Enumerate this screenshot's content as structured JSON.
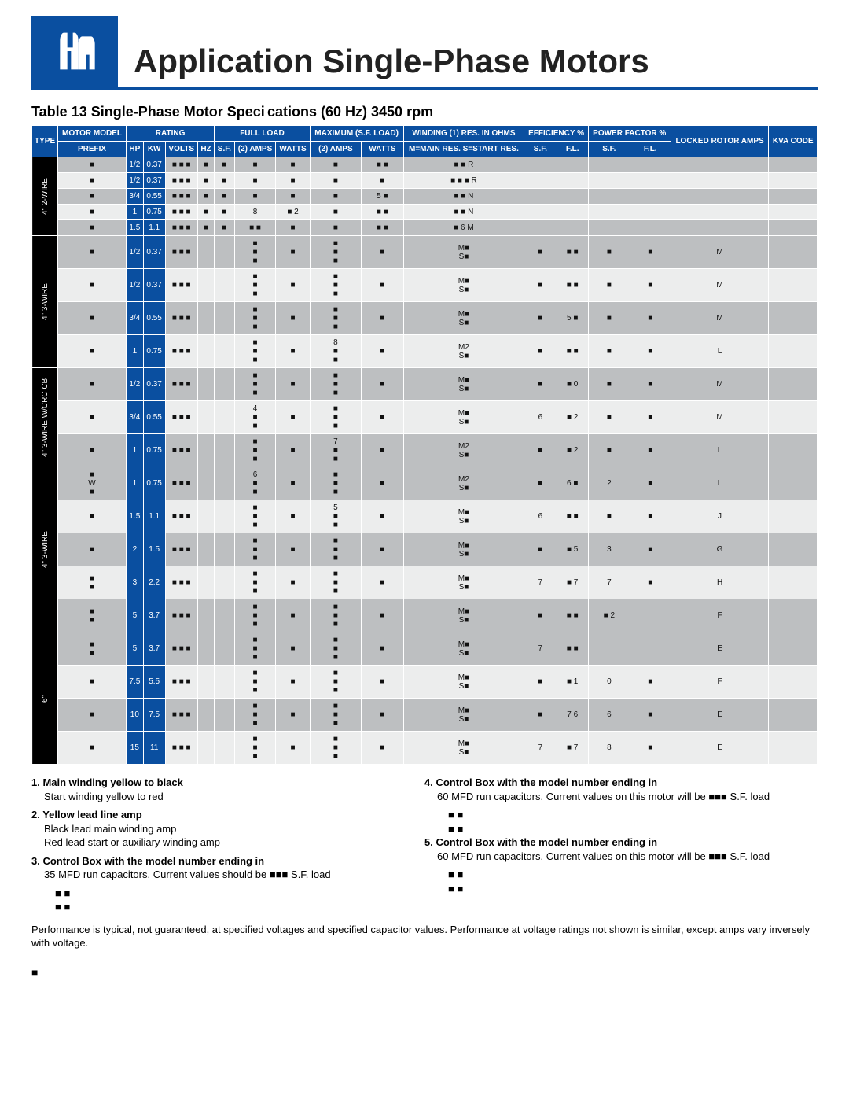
{
  "page_title": "Application  Single-Phase Motors",
  "table_caption_left": "Table 13 Single-Phase Motor Speci",
  "table_caption_right": "cations (60 Hz) 3450 rpm",
  "headers": {
    "type": "TYPE",
    "motor_model": "MOTOR MODEL",
    "prefix": "PREFIX",
    "rating": "RATING",
    "hp": "HP",
    "kw": "KW",
    "volts": "VOLTS",
    "hz": "HZ",
    "full_load": "FULL LOAD",
    "sf": "S.F.",
    "amps2": "(2) AMPS",
    "watts": "WATTS",
    "max_sf": "MAXIMUM (S.F. LOAD)",
    "winding": "WINDING (1) RES. IN OHMS",
    "mmain": "M=MAIN RES. S=START RES.",
    "eff": "EFFICIENCY %",
    "pf": "POWER FACTOR %",
    "fl": "F.L.",
    "locked_rotor": "LOCKED ROTOR AMPS",
    "kva_code": "KVA CODE"
  },
  "types": [
    "4\" 2-WIRE",
    "4\" 3-WIRE",
    "4\" 3-WIRE W/CRC CB",
    "4\" 3-WIRE",
    "6\""
  ],
  "group1": [
    {
      "prefix": "■",
      "hp": "1/2",
      "kw": "0.37",
      "volts": "■ ■ ■",
      "hz": "■",
      "sf": "■",
      "amps": "■",
      "watts": "■",
      "mamps": "■",
      "mwatts": "■ ■",
      "wind": "■ ■ R",
      "effs": "",
      "pf": "",
      "lr": "",
      "kva": ""
    },
    {
      "prefix": "■",
      "hp": "1/2",
      "kw": "0.37",
      "volts": "■ ■ ■",
      "hz": "■",
      "sf": "■",
      "amps": "■",
      "watts": "■",
      "mamps": "■",
      "mwatts": "■",
      "wind": "■ ■ ■ R",
      "effs": "",
      "pf": "",
      "lr": "",
      "kva": ""
    },
    {
      "prefix": "■",
      "hp": "3/4",
      "kw": "0.55",
      "volts": "■ ■ ■",
      "hz": "■",
      "sf": "■",
      "amps": "■",
      "watts": "■",
      "mamps": "■",
      "mwatts": "5 ■",
      "wind": "■ ■ N",
      "effs": "",
      "pf": "",
      "lr": "",
      "kva": ""
    },
    {
      "prefix": "■",
      "hp": "1",
      "kw": "0.75",
      "volts": "■ ■ ■",
      "hz": "■",
      "sf": "■",
      "amps": "8",
      "watts": "■ 2",
      "mamps": "■",
      "mwatts": "■ ■",
      "wind": "■ ■ N",
      "effs": "",
      "pf": "",
      "lr": "",
      "kva": ""
    },
    {
      "prefix": "■",
      "hp": "1.5",
      "kw": "1.1",
      "volts": "■ ■ ■",
      "hz": "■",
      "sf": "■",
      "amps": "■ ■",
      "watts": "■",
      "mamps": "■",
      "mwatts": "■ ■",
      "wind": "■ 6 M",
      "effs": "",
      "pf": "",
      "lr": "",
      "kva": ""
    }
  ],
  "group2": [
    {
      "prefix": "■",
      "hp": "1/2",
      "kw": "0.37",
      "volts": "■ ■ ■",
      "hz": "",
      "sf": "",
      "amps": "■\n■\n■",
      "watts": "■",
      "mamps": "■\n■\n■",
      "mwatts": "■",
      "wind": "M■\nS■",
      "eff_sf": "■",
      "eff_fl": "■ ■",
      "pf_sf": "■",
      "pf_fl": "■",
      "lr": "M",
      "kva": ""
    },
    {
      "prefix": "■",
      "hp": "1/2",
      "kw": "0.37",
      "volts": "■ ■ ■",
      "hz": "",
      "sf": "",
      "amps": "■\n■\n■",
      "watts": "■",
      "mamps": "■\n■\n■",
      "mwatts": "■",
      "wind": "M■\nS■",
      "eff_sf": "■",
      "eff_fl": "■ ■",
      "pf_sf": "■",
      "pf_fl": "■",
      "lr": "M",
      "kva": ""
    },
    {
      "prefix": "■",
      "hp": "3/4",
      "kw": "0.55",
      "volts": "■ ■ ■",
      "hz": "",
      "sf": "",
      "amps": "■\n■\n■",
      "watts": "■",
      "mamps": "■\n■\n■",
      "mwatts": "■",
      "wind": "M■\nS■",
      "eff_sf": "■",
      "eff_fl": "5 ■",
      "pf_sf": "■",
      "pf_fl": "■",
      "lr": "M",
      "kva": ""
    },
    {
      "prefix": "■",
      "hp": "1",
      "kw": "0.75",
      "volts": "■ ■ ■",
      "hz": "",
      "sf": "",
      "amps": "■\n■\n■",
      "watts": "■",
      "mamps": "8\n■\n■",
      "mwatts": "■",
      "wind": "M2\nS■",
      "eff_sf": "■",
      "eff_fl": "■ ■",
      "pf_sf": "■",
      "pf_fl": "■",
      "lr": "L",
      "kva": ""
    }
  ],
  "group3": [
    {
      "prefix": "■",
      "hp": "1/2",
      "kw": "0.37",
      "volts": "■ ■ ■",
      "hz": "",
      "sf": "",
      "amps": "■\n■\n■",
      "watts": "■",
      "mamps": "■\n■\n■",
      "mwatts": "■",
      "wind": "M■\nS■",
      "eff_sf": "■",
      "eff_fl": "■ 0",
      "pf_sf": "■",
      "pf_fl": "■",
      "lr": "M",
      "kva": ""
    },
    {
      "prefix": "■",
      "hp": "3/4",
      "kw": "0.55",
      "volts": "■ ■ ■",
      "hz": "",
      "sf": "",
      "amps": "4\n■\n■",
      "watts": "■",
      "mamps": "■\n■\n■",
      "mwatts": "■",
      "wind": "M■\nS■",
      "eff_sf": "6",
      "eff_fl": "■ 2",
      "pf_sf": "■",
      "pf_fl": "■",
      "lr": "M",
      "kva": ""
    },
    {
      "prefix": "■",
      "hp": "1",
      "kw": "0.75",
      "volts": "■ ■ ■",
      "hz": "",
      "sf": "",
      "amps": "■\n■\n■",
      "watts": "■",
      "mamps": "7\n■\n■",
      "mwatts": "■",
      "wind": "M2\nS■",
      "eff_sf": "■",
      "eff_fl": "■ 2",
      "pf_sf": "■",
      "pf_fl": "■",
      "lr": "L",
      "kva": ""
    }
  ],
  "group4": [
    {
      "prefix": "■\nW\n■",
      "hp": "1",
      "kw": "0.75",
      "volts": "■ ■ ■",
      "hz": "",
      "sf": "",
      "amps": "6\n■\n■",
      "watts": "■",
      "mamps": "■\n■\n■",
      "mwatts": "■",
      "wind": "M2\nS■",
      "eff_sf": "■",
      "eff_fl": "6 ■",
      "pf_sf": "2",
      "pf_fl": "■",
      "lr": "L",
      "kva": ""
    },
    {
      "prefix": "■",
      "hp": "1.5",
      "kw": "1.1",
      "volts": "■ ■ ■",
      "hz": "",
      "sf": "",
      "amps": "■\n■\n■",
      "watts": "■",
      "mamps": "5\n■\n■",
      "mwatts": "■",
      "wind": "M■\nS■",
      "eff_sf": "6",
      "eff_fl": "■ ■",
      "pf_sf": "■",
      "pf_fl": "■",
      "lr": "J",
      "kva": ""
    },
    {
      "prefix": "■",
      "hp": "2",
      "kw": "1.5",
      "volts": "■ ■ ■",
      "hz": "",
      "sf": "",
      "amps": "■\n■\n■",
      "watts": "■",
      "mamps": "■\n■\n■",
      "mwatts": "■",
      "wind": "M■\nS■",
      "eff_sf": "■",
      "eff_fl": "■ 5",
      "pf_sf": "3",
      "pf_fl": "■",
      "lr": "G",
      "kva": ""
    },
    {
      "prefix": "■\n■",
      "hp": "3",
      "kw": "2.2",
      "volts": "■ ■ ■",
      "hz": "",
      "sf": "",
      "amps": "■\n■\n■",
      "watts": "■",
      "mamps": "■\n■\n■",
      "mwatts": "■",
      "wind": "M■\nS■",
      "eff_sf": "7",
      "eff_fl": "■ 7",
      "pf_sf": "7",
      "pf_fl": "■",
      "lr": "H",
      "kva": ""
    },
    {
      "prefix": "■\n■",
      "hp": "5",
      "kw": "3.7",
      "volts": "■ ■ ■",
      "hz": "",
      "sf": "",
      "amps": "■\n■\n■",
      "watts": "■",
      "mamps": "■\n■\n■",
      "mwatts": "■",
      "wind": "M■\nS■",
      "eff_sf": "■",
      "eff_fl": "■ ■",
      "pf_sf": "■ 2",
      "pf_fl": "",
      "lr": "F",
      "kva": ""
    }
  ],
  "group5": [
    {
      "prefix": "■\n■",
      "hp": "5",
      "kw": "3.7",
      "volts": "■ ■ ■",
      "hz": "",
      "sf": "",
      "amps": "■\n■\n■",
      "watts": "■",
      "mamps": "■\n■\n■",
      "mwatts": "■",
      "wind": "M■\nS■",
      "eff_sf": "7",
      "eff_fl": "■ ■",
      "pf_sf": "",
      "pf_fl": "",
      "lr": "E",
      "kva": ""
    },
    {
      "prefix": "■",
      "hp": "7.5",
      "kw": "5.5",
      "volts": "■ ■ ■",
      "hz": "",
      "sf": "",
      "amps": "■\n■\n■",
      "watts": "■",
      "mamps": "■\n■\n■",
      "mwatts": "■",
      "wind": "M■\nS■",
      "eff_sf": "■",
      "eff_fl": "■ 1",
      "pf_sf": "0",
      "pf_fl": "■",
      "lr": "F",
      "kva": ""
    },
    {
      "prefix": "■",
      "hp": "10",
      "kw": "7.5",
      "volts": "■ ■ ■",
      "hz": "",
      "sf": "",
      "amps": "■\n■\n■",
      "watts": "■",
      "mamps": "■\n■\n■",
      "mwatts": "■",
      "wind": "M■\nS■",
      "eff_sf": "■",
      "eff_fl": "7 6",
      "pf_sf": "6",
      "pf_fl": "■",
      "lr": "E",
      "kva": ""
    },
    {
      "prefix": "■",
      "hp": "15",
      "kw": "11",
      "volts": "■ ■ ■",
      "hz": "",
      "sf": "",
      "amps": "■\n■\n■",
      "watts": "■",
      "mamps": "■\n■\n■",
      "mwatts": "■",
      "wind": "M■\nS■",
      "eff_sf": "7",
      "eff_fl": "■ 7",
      "pf_sf": "8",
      "pf_fl": "■",
      "lr": "E",
      "kva": ""
    }
  ],
  "notes_left": [
    {
      "num": "1",
      "text": "Main winding yellow to black",
      "sub": "Start winding yellow to red"
    },
    {
      "num": "2",
      "text": "Yellow lead line amp",
      "sub": "Black lead main winding amp\nRed lead start or auxiliary winding amp"
    },
    {
      "num": "3",
      "text": "Control Box with the model number ending in",
      "sub": "35 MFD run capacitors. Current values should be ■■■ S.F. load"
    },
    {
      "table": [
        [
          "■",
          "■"
        ],
        [
          "■",
          "■"
        ]
      ]
    }
  ],
  "notes_right": [
    {
      "num": "4",
      "text": "Control Box with the model number ending in",
      "sub": "60 MFD run capacitors. Current values on this motor will be ■■■ S.F. load"
    },
    {
      "table": [
        [
          "■",
          "■"
        ],
        [
          "■",
          "■"
        ]
      ]
    },
    {
      "num": "5",
      "text": "Control Box with the model number ending in",
      "sub": "60 MFD run capacitors. Current values on this motor will be ■■■ S.F. load"
    },
    {
      "table": [
        [
          "■",
          "■"
        ],
        [
          "■",
          "■"
        ]
      ]
    }
  ],
  "perf_note": "Performance is typical, not guaranteed, at specified voltages and specified capacitor values. Performance at voltage ratings not shown is similar, except amps vary inversely with voltage.",
  "page_number": "■",
  "colors": {
    "blue": "#0a4fa0",
    "black": "#000000",
    "row_light": "#eceded",
    "row_dark": "#bdbfc1"
  }
}
